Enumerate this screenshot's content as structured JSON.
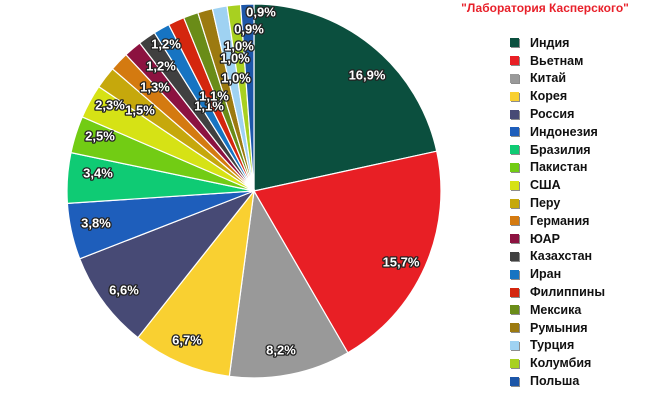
{
  "source": "\"Лаборатория Касперского\"",
  "chart_data": {
    "type": "pie",
    "title": "",
    "legend_position": "right",
    "slices": [
      {
        "name": "Индия",
        "value": 16.9,
        "label": "16,9%",
        "color": "#0b4f3e"
      },
      {
        "name": "Вьетнам",
        "value": 15.7,
        "label": "15,7%",
        "color": "#e81f25"
      },
      {
        "name": "Китай",
        "value": 8.2,
        "label": "8,2%",
        "color": "#999999"
      },
      {
        "name": "Корея",
        "value": 6.7,
        "label": "6,7%",
        "color": "#f9d031"
      },
      {
        "name": "Россия",
        "value": 6.6,
        "label": "6,6%",
        "color": "#474a75"
      },
      {
        "name": "Индонезия",
        "value": 3.8,
        "label": "3,8%",
        "color": "#1e5ebb"
      },
      {
        "name": "Бразилия",
        "value": 3.4,
        "label": "3,4%",
        "color": "#0fcb74"
      },
      {
        "name": "Пакистан",
        "value": 2.5,
        "label": "2,5%",
        "color": "#72cc14"
      },
      {
        "name": "США",
        "value": 2.3,
        "label": "2,3%",
        "color": "#d6e215"
      },
      {
        "name": "Перу",
        "value": 1.5,
        "label": "1,5%",
        "color": "#c6a80c"
      },
      {
        "name": "Германия",
        "value": 1.3,
        "label": "1,3%",
        "color": "#d47a10"
      },
      {
        "name": "ЮАР",
        "value": 1.2,
        "label": "1,2%",
        "color": "#8c1240"
      },
      {
        "name": "Казахстан",
        "value": 1.2,
        "label": "1,2%",
        "color": "#404040"
      },
      {
        "name": "Иран",
        "value": 1.1,
        "label": "1,1%",
        "color": "#1774c2"
      },
      {
        "name": "Филиппины",
        "value": 1.1,
        "label": "1,1%",
        "color": "#d4260e"
      },
      {
        "name": "Мексика",
        "value": 1.0,
        "label": "1,0%",
        "color": "#6a8c18"
      },
      {
        "name": "Румыния",
        "value": 1.0,
        "label": "1,0%",
        "color": "#9c7a10"
      },
      {
        "name": "Турция",
        "value": 1.0,
        "label": "1,0%",
        "color": "#9fd2f2"
      },
      {
        "name": "Колумбия",
        "value": 0.9,
        "label": "0,9%",
        "color": "#a8d020"
      },
      {
        "name": "Польша",
        "value": 0.9,
        "label": "0,9%",
        "color": "#1c56a8"
      }
    ]
  }
}
